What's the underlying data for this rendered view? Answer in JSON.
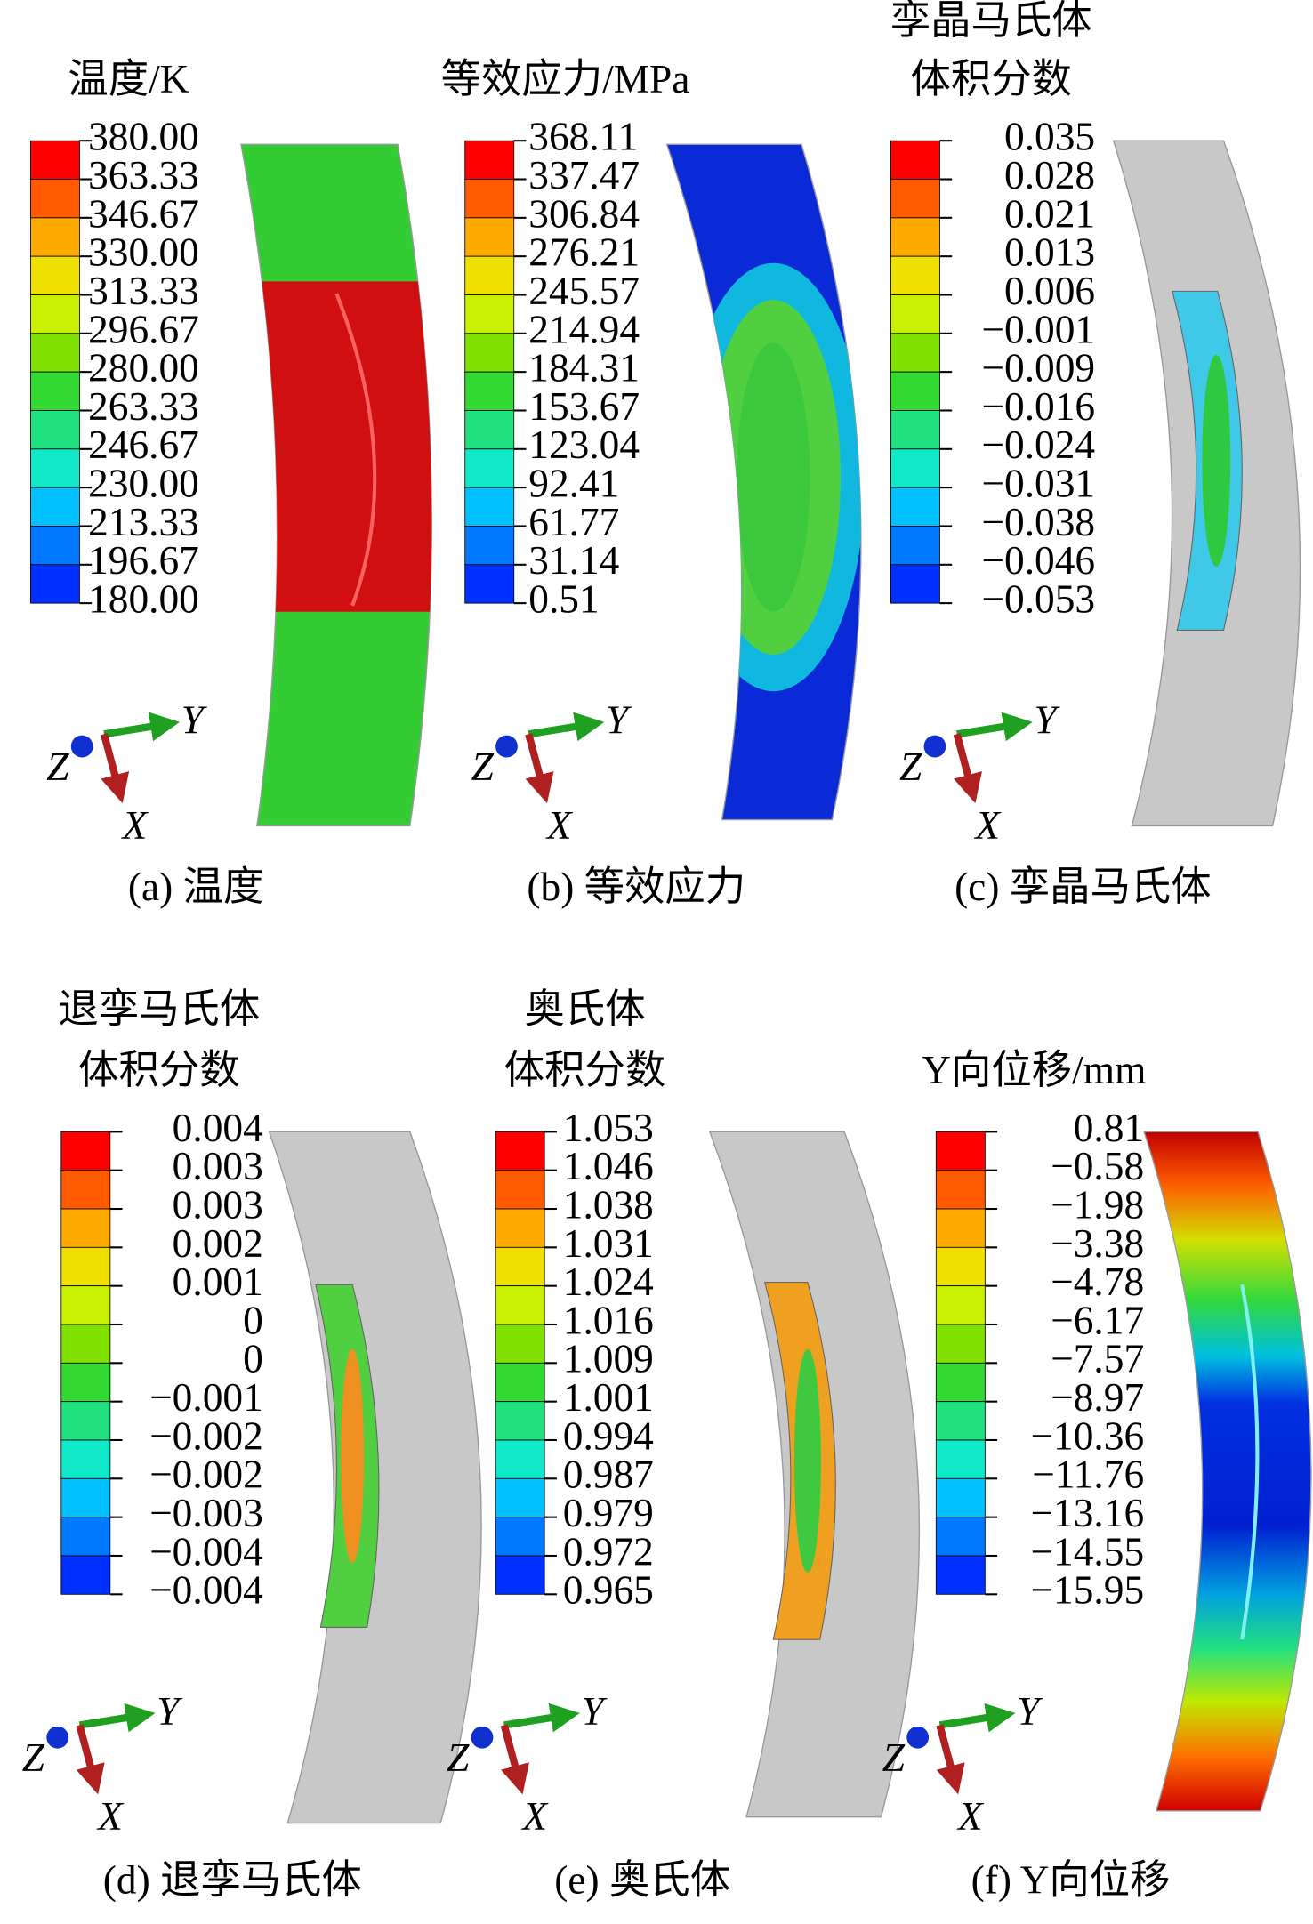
{
  "triad_labels": {
    "x": "X",
    "y": "Y",
    "z": "Z"
  },
  "legend_colors": [
    "#ff0000",
    "#ff5a00",
    "#ffaa00",
    "#f0e000",
    "#c8f000",
    "#80e000",
    "#30d830",
    "#20e080",
    "#10e8c8",
    "#00c0ff",
    "#0078ff",
    "#0030ff"
  ],
  "panels": [
    {
      "title": [
        "温度/K"
      ],
      "legend": [
        "380.00",
        "363.33",
        "346.67",
        "330.00",
        "313.33",
        "296.67",
        "280.00",
        "263.33",
        "246.67",
        "230.00",
        "213.33",
        "196.67",
        "180.00"
      ],
      "caption": "(a) 温度"
    },
    {
      "title": [
        "等效应力/MPa"
      ],
      "legend": [
        "368.11",
        "337.47",
        "306.84",
        "276.21",
        "245.57",
        "214.94",
        "184.31",
        "153.67",
        "123.04",
        "92.41",
        "61.77",
        "31.14",
        "0.51"
      ],
      "caption": "(b) 等效应力"
    },
    {
      "title": [
        "孪晶马氏体",
        "体积分数"
      ],
      "legend": [
        "0.035",
        "0.028",
        "0.021",
        "0.013",
        "0.006",
        "−0.001",
        "−0.009",
        "−0.016",
        "−0.024",
        "−0.031",
        "−0.038",
        "−0.046",
        "−0.053"
      ],
      "caption": "(c) 孪晶马氏体"
    },
    {
      "title": [
        "退孪马氏体",
        "体积分数"
      ],
      "legend": [
        "0.004",
        "0.003",
        "0.003",
        "0.002",
        "0.001",
        "0",
        "0",
        "−0.001",
        "−0.002",
        "−0.002",
        "−0.003",
        "−0.004",
        "−0.004"
      ],
      "caption": "(d) 退孪马氏体"
    },
    {
      "title": [
        "奥氏体",
        "体积分数"
      ],
      "legend": [
        "1.053",
        "1.046",
        "1.038",
        "1.031",
        "1.024",
        "1.016",
        "1.009",
        "1.001",
        "0.994",
        "0.987",
        "0.979",
        "0.972",
        "0.965"
      ],
      "caption": "(e) 奥氏体"
    },
    {
      "title": [
        "Y向位移/mm"
      ],
      "legend": [
        "0.81",
        "−0.58",
        "−1.98",
        "−3.38",
        "−4.78",
        "−6.17",
        "−7.57",
        "−8.97",
        "−10.36",
        "−11.76",
        "−13.16",
        "−14.55",
        "−15.95"
      ],
      "caption": "(f) Y向位移"
    }
  ]
}
